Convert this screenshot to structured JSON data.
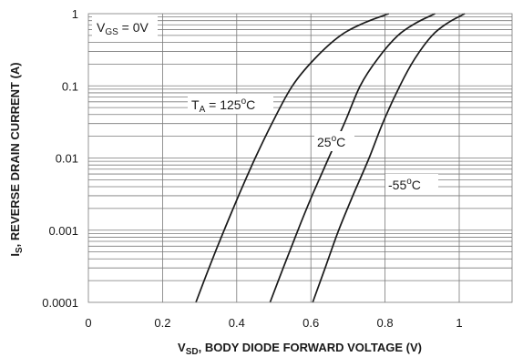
{
  "chart_data": {
    "type": "line",
    "xlabel": {
      "main": "V",
      "sub": "SD",
      "rest": ",  BODY DIODE FORWARD VOLTAGE (V)"
    },
    "ylabel": {
      "main": "I",
      "sub": "S",
      "rest": ", REVERSE DRAIN CURRENT (A)"
    },
    "xlim": [
      0,
      1.2
    ],
    "ylim": [
      0.0001,
      1
    ],
    "yscale": "log",
    "grid": true,
    "x_ticks": [
      "0",
      "0.2",
      "0.4",
      "0.6",
      "0.8",
      "1"
    ],
    "y_ticks": [
      "0.0001",
      "0.001",
      "0.01",
      "0.1",
      "1"
    ],
    "condition_label": {
      "main": "V",
      "sub": "GS",
      "rest": " = 0V"
    },
    "series": [
      {
        "name": "T_A = 125°C",
        "label": {
          "main": "T",
          "sub": "A",
          "rest": " = 125",
          "sup": "o",
          "unit": "C"
        },
        "x": [
          0.29,
          0.327,
          0.366,
          0.407,
          0.45,
          0.497,
          0.55,
          0.61,
          0.68,
          0.745,
          0.81
        ],
        "y": [
          0.0001,
          0.000316,
          0.001,
          0.00316,
          0.01,
          0.0316,
          0.1,
          0.237,
          0.5,
          0.75,
          1
        ]
      },
      {
        "name": "25°C",
        "label": {
          "main": "25",
          "sup": "o",
          "unit": "C"
        },
        "x": [
          0.49,
          0.527,
          0.565,
          0.605,
          0.648,
          0.692,
          0.733,
          0.78,
          0.835,
          0.885,
          0.935
        ],
        "y": [
          0.0001,
          0.000316,
          0.001,
          0.00316,
          0.01,
          0.0316,
          0.1,
          0.237,
          0.5,
          0.75,
          1
        ]
      },
      {
        "name": "-55°C",
        "label": {
          "main": "-55",
          "sup": "o",
          "unit": "C"
        },
        "x": [
          0.605,
          0.64,
          0.675,
          0.715,
          0.757,
          0.795,
          0.84,
          0.88,
          0.927,
          0.97,
          1.015
        ],
        "y": [
          0.0001,
          0.000316,
          0.001,
          0.00316,
          0.01,
          0.0316,
          0.1,
          0.237,
          0.5,
          0.75,
          1
        ]
      }
    ]
  }
}
